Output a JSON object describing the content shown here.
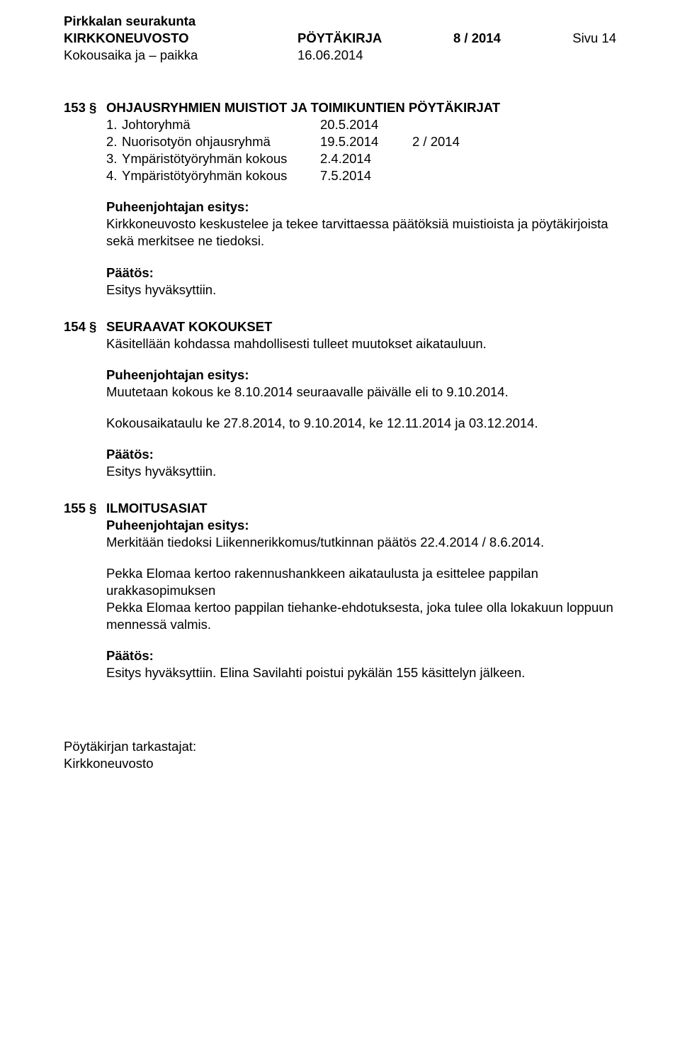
{
  "header": {
    "org": "Pirkkalan seurakunta",
    "board": "KIRKKONEUVOSTO",
    "doc_type": "PÖYTÄKIRJA",
    "doc_num": "8 / 2014",
    "page_label": "Sivu 14",
    "time_place_label": "Kokousaika ja – paikka",
    "date": "16.06.2014"
  },
  "s153": {
    "num": "153 §",
    "title": "OHJAUSRYHMIEN MUISTIOT JA TOIMIKUNTIEN PÖYTÄKIRJAT",
    "rows": [
      {
        "i": "1.",
        "label": "Johtoryhmä",
        "v1": "20.5.2014",
        "v2": ""
      },
      {
        "i": "2.",
        "label": "Nuorisotyön ohjausryhmä",
        "v1": "19.5.2014",
        "v2": "2 / 2014"
      },
      {
        "i": "3.",
        "label": "Ympäristötyöryhmän kokous",
        "v1": "2.4.2014",
        "v2": ""
      },
      {
        "i": "4.",
        "label": "Ympäristötyöryhmän kokous",
        "v1": "7.5.2014",
        "v2": ""
      }
    ],
    "proposal_head": "Puheenjohtajan esitys:",
    "proposal_body": "Kirkkoneuvosto keskustelee ja tekee tarvittaessa päätöksiä muistioista ja pöytäkirjoista sekä merkitsee ne tiedoksi.",
    "decision_head": "Päätös:",
    "decision_body": "Esitys hyväksyttiin."
  },
  "s154": {
    "num": "154 §",
    "title": "SEURAAVAT KOKOUKSET",
    "intro": "Käsitellään kohdassa mahdollisesti tulleet muutokset aikatauluun.",
    "proposal_head": "Puheenjohtajan esitys:",
    "proposal_body": "Muutetaan kokous ke 8.10.2014 seuraavalle päivälle eli to 9.10.2014.",
    "schedule": "Kokousaikataulu ke 27.8.2014, to 9.10.2014, ke 12.11.2014 ja 03.12.2014.",
    "decision_head": "Päätös:",
    "decision_body": "Esitys hyväksyttiin."
  },
  "s155": {
    "num": "155 §",
    "title": "ILMOITUSASIAT",
    "proposal_head": "Puheenjohtajan esitys:",
    "proposal_body": "Merkitään tiedoksi  Liikennerikkomus/tutkinnan päätös 22.4.2014 / 8.6.2014.",
    "p2": "Pekka Elomaa kertoo rakennushankkeen aikataulusta ja esittelee pappilan urakkasopimuksen",
    "p3": "Pekka Elomaa kertoo pappilan tiehanke-ehdotuksesta, joka tulee olla lokakuun loppuun mennessä valmis.",
    "decision_head": "Päätös:",
    "decision_body": "Esitys hyväksyttiin.  Elina Savilahti poistui pykälän 155 käsittelyn jälkeen."
  },
  "footer": {
    "line1": "Pöytäkirjan tarkastajat:",
    "line2": "Kirkkoneuvosto"
  }
}
